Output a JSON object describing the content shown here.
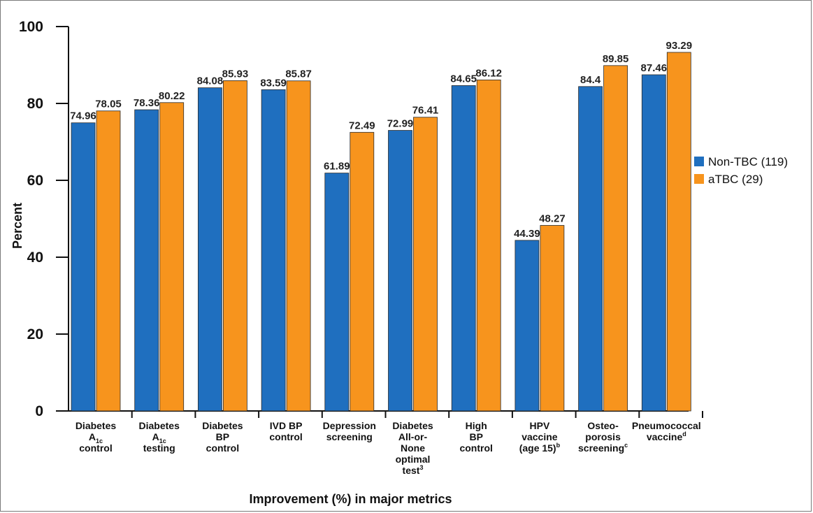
{
  "chart_data": {
    "type": "bar",
    "title": "",
    "xlabel": "Improvement (%) in major metrics",
    "ylabel": "Percent",
    "ylim": [
      0,
      100
    ],
    "yticks": [
      "0",
      "20",
      "40",
      "60",
      "80",
      "100"
    ],
    "categories": [
      {
        "lines": [
          "Diabetes",
          "A|1c",
          "control"
        ]
      },
      {
        "lines": [
          "Diabetes",
          "A|1c",
          "testing"
        ]
      },
      {
        "lines": [
          "Diabetes",
          "BP",
          "control"
        ]
      },
      {
        "lines": [
          "IVD BP",
          "control"
        ]
      },
      {
        "lines": [
          "Depression",
          "screening"
        ]
      },
      {
        "lines": [
          "Diabetes",
          "All-or-",
          "None",
          "optimal",
          "test|3"
        ]
      },
      {
        "lines": [
          "High",
          "BP",
          "control"
        ]
      },
      {
        "lines": [
          "HPV",
          "vaccine",
          "(age 15)|b"
        ]
      },
      {
        "lines": [
          "Osteo-",
          "porosis",
          "screening|c"
        ]
      },
      {
        "lines": [
          "Pneumococcal",
          "vaccine|d"
        ]
      }
    ],
    "series": [
      {
        "name": "Non-TBC (119)",
        "color": "#1f6fbf",
        "values": [
          74.96,
          78.36,
          84.08,
          83.59,
          61.89,
          72.99,
          84.65,
          44.39,
          84.4,
          87.46
        ],
        "labels": [
          "74.96",
          "78.36",
          "84.08",
          "83.59",
          "61.89",
          "72.99",
          "84.65",
          "44.39",
          "84.4",
          "87.46"
        ]
      },
      {
        "name": "aTBC (29)",
        "color": "#f7941d",
        "values": [
          78.05,
          80.22,
          85.93,
          85.87,
          72.49,
          76.41,
          86.12,
          48.27,
          89.85,
          93.29
        ],
        "labels": [
          "78.05",
          "80.22",
          "85.93",
          "85.87",
          "72.49",
          "76.41",
          "86.12",
          "48.27",
          "89.85",
          "93.29"
        ]
      }
    ],
    "legend": "right",
    "grid": false
  }
}
